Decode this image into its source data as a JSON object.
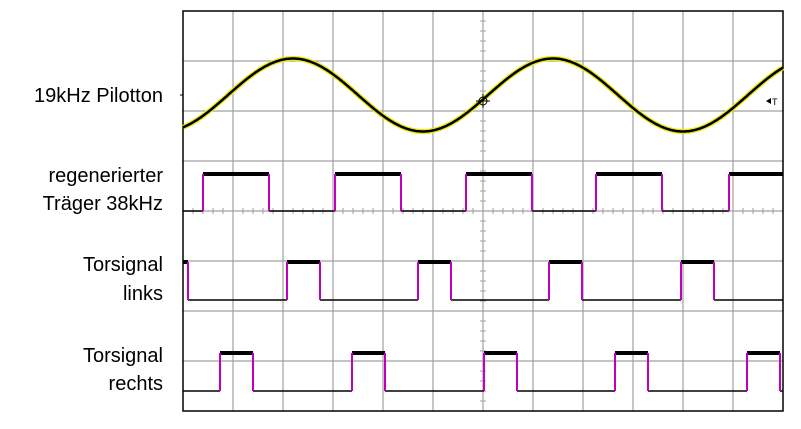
{
  "labels": {
    "pilot": "19kHz Pilotton",
    "carrier_1": "regenerierter",
    "carrier_2": "Träger 38kHz",
    "left_1": "Torsignal",
    "left_2": "links",
    "right_1": "Torsignal",
    "right_2": "rechts",
    "trigger_marker": "T"
  },
  "chart_data": {
    "type": "line",
    "grid": true,
    "xlim": [
      0,
      12
    ],
    "ylim": [
      0,
      8
    ],
    "colors": {
      "grid": "#a0a0a0",
      "trace": "#000000",
      "halo": "#e8e800",
      "edge": "#c000c0"
    },
    "series": [
      {
        "name": "19kHz Pilotton",
        "kind": "sine",
        "period": 5.2,
        "peak_at": 7.4,
        "amplitude": 0.73,
        "offset": 6.32
      },
      {
        "name": "regenerierter Träger 38kHz",
        "kind": "pulse",
        "high": 4.74,
        "low": 4.0,
        "rising": [
          0.4,
          3.04,
          5.66,
          8.26,
          10.92
        ],
        "width": 1.32
      },
      {
        "name": "Torsignal links",
        "kind": "pulse",
        "high": 2.98,
        "low": 2.22,
        "rising": [
          -0.56,
          2.08,
          4.7,
          7.32,
          9.96
        ],
        "width": 0.66
      },
      {
        "name": "Torsignal rechts",
        "kind": "pulse",
        "high": 1.16,
        "low": 0.4,
        "rising": [
          0.74,
          3.38,
          6.02,
          8.64,
          11.28
        ],
        "width": 0.66
      }
    ]
  }
}
